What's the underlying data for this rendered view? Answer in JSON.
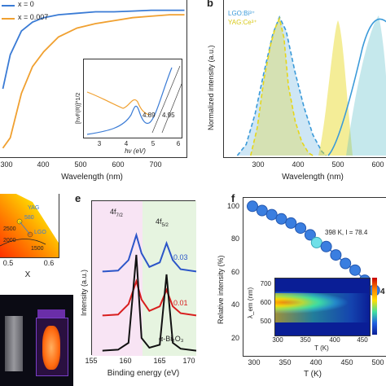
{
  "panel_a": {
    "legend": [
      {
        "label": "x = 0",
        "color": "#3a7bd5"
      },
      {
        "label": "x = 0.007",
        "color": "#f0a030"
      }
    ],
    "xlabel": "Wavelength (nm)",
    "xticks": [
      "300",
      "400",
      "500",
      "600",
      "700"
    ],
    "inset": {
      "ylabel": "[hνF(R)]^1/2",
      "xlabel": "hν (eV)",
      "xticks": [
        "3",
        "4",
        "5",
        "6"
      ],
      "annot1": "4.89",
      "annot2": "4.95"
    }
  },
  "panel_b": {
    "letter": "b",
    "legend": [
      {
        "label": "LGO:Bi³⁺",
        "color": "#3a9ad9"
      },
      {
        "label": "YAG:Ce³⁺",
        "color": "#e6d619"
      }
    ],
    "ylabel": "Normalized intensity (a.u.)",
    "xlabel": "Wavelength (nm)",
    "xticks": [
      "300",
      "400",
      "500",
      "600"
    ]
  },
  "panel_d": {
    "labels": {
      "yag": "YAG",
      "n580": "580",
      "n2500": "2500",
      "lgo": "LGO",
      "n2000": "2000",
      "n1500": "1500"
    },
    "xticks": [
      "0.5",
      "0.6"
    ],
    "xlabel": "X"
  },
  "panel_e": {
    "letter": "e",
    "peak1": "4f",
    "peak1_sub": "7/2",
    "peak2": "4f",
    "peak2_sub": "5/2",
    "ylabel": "Intensity (a.u.)",
    "xlabel": "Binding energy (eV)",
    "xticks": [
      "155",
      "160",
      "165",
      "170"
    ],
    "series_labels": [
      "0.03",
      "0.01",
      "α-Bi₂O₃"
    ]
  },
  "panel_f": {
    "letter": "f",
    "ylabel": "Relative intensity (%)",
    "xlabel": "T (K)",
    "yticks": [
      "100",
      "80",
      "60",
      "40",
      "20"
    ],
    "xticks": [
      "300",
      "350",
      "400",
      "450",
      "500"
    ],
    "annotation": "398 K, I = 78.4",
    "right_edge_label": "4",
    "inset": {
      "ylabel": "λ_em (nm)",
      "xlabel": "T (K)",
      "yticks": [
        "700",
        "600",
        "500"
      ],
      "xticks": [
        "300",
        "350",
        "400",
        "450"
      ]
    }
  },
  "chart_data": [
    {
      "type": "line",
      "panel": "a",
      "xlabel": "Wavelength (nm)",
      "xlim": [
        250,
        750
      ],
      "series": [
        {
          "name": "x = 0",
          "x": [
            250,
            270,
            300,
            330,
            360,
            400,
            450,
            500,
            550,
            600,
            650,
            700,
            740
          ],
          "values": [
            0.45,
            0.68,
            0.84,
            0.9,
            0.93,
            0.95,
            0.96,
            0.97,
            0.97,
            0.975,
            0.98,
            0.98,
            0.98
          ]
        },
        {
          "name": "x = 0.007",
          "x": [
            250,
            270,
            300,
            330,
            360,
            400,
            450,
            500,
            550,
            600,
            650,
            700,
            740
          ],
          "values": [
            0.05,
            0.12,
            0.42,
            0.6,
            0.7,
            0.8,
            0.86,
            0.89,
            0.91,
            0.93,
            0.94,
            0.95,
            0.95
          ]
        }
      ]
    },
    {
      "type": "area",
      "panel": "b",
      "xlabel": "Wavelength (nm)",
      "ylabel": "Normalized intensity (a.u.)",
      "xlim": [
        260,
        640
      ],
      "series": [
        {
          "name": "LGO:Bi³⁺",
          "x": [
            300,
            320,
            340,
            360,
            380,
            395,
            410,
            430,
            450,
            470,
            490,
            500
          ],
          "values": [
            0.0,
            0.08,
            0.3,
            0.6,
            0.88,
            1.0,
            0.9,
            0.6,
            0.35,
            0.15,
            0.03,
            0.0
          ]
        },
        {
          "name": "YAG:Ce³⁺",
          "x": [
            330,
            345,
            360,
            375,
            385,
            395,
            405,
            415,
            430,
            445,
            460,
            470
          ],
          "values": [
            0.0,
            0.2,
            0.55,
            0.8,
            0.92,
            0.99,
            0.85,
            0.5,
            0.25,
            0.1,
            0.02,
            0.0
          ]
        }
      ]
    },
    {
      "type": "line",
      "panel": "e",
      "xlabel": "Binding energy (eV)",
      "ylabel": "Intensity (a.u.)",
      "xlim": [
        150,
        170
      ],
      "series": [
        {
          "name": "0.03",
          "x": [
            152,
            155,
            157,
            158.5,
            159.5,
            161,
            163,
            164.3,
            165.5,
            167,
            170
          ],
          "values": [
            0.1,
            0.12,
            0.35,
            0.9,
            0.5,
            0.2,
            0.3,
            0.72,
            0.35,
            0.15,
            0.1
          ]
        },
        {
          "name": "0.01",
          "x": [
            152,
            155,
            157,
            158.5,
            159.5,
            161,
            163,
            164.3,
            165.5,
            167,
            170
          ],
          "values": [
            0.1,
            0.12,
            0.35,
            0.85,
            0.45,
            0.2,
            0.3,
            0.66,
            0.3,
            0.15,
            0.1
          ]
        },
        {
          "name": "α-Bi₂O₃",
          "x": [
            152,
            155,
            157,
            158.5,
            159.5,
            161,
            163,
            164.3,
            165.5,
            167,
            170
          ],
          "values": [
            0.02,
            0.03,
            0.1,
            1.0,
            0.15,
            0.05,
            0.08,
            0.8,
            0.1,
            0.04,
            0.02
          ]
        }
      ]
    },
    {
      "type": "scatter",
      "panel": "f",
      "xlabel": "T (K)",
      "ylabel": "Relative intensity (%)",
      "xlim": [
        290,
        510
      ],
      "ylim": [
        15,
        105
      ],
      "x": [
        298,
        313,
        328,
        343,
        358,
        373,
        388,
        398,
        413,
        428,
        443,
        458,
        473,
        488
      ],
      "values": [
        100,
        97.5,
        95,
        92.5,
        90,
        87,
        83,
        78.4,
        76,
        71,
        66,
        62,
        56,
        50
      ],
      "highlight_index": 7
    }
  ]
}
